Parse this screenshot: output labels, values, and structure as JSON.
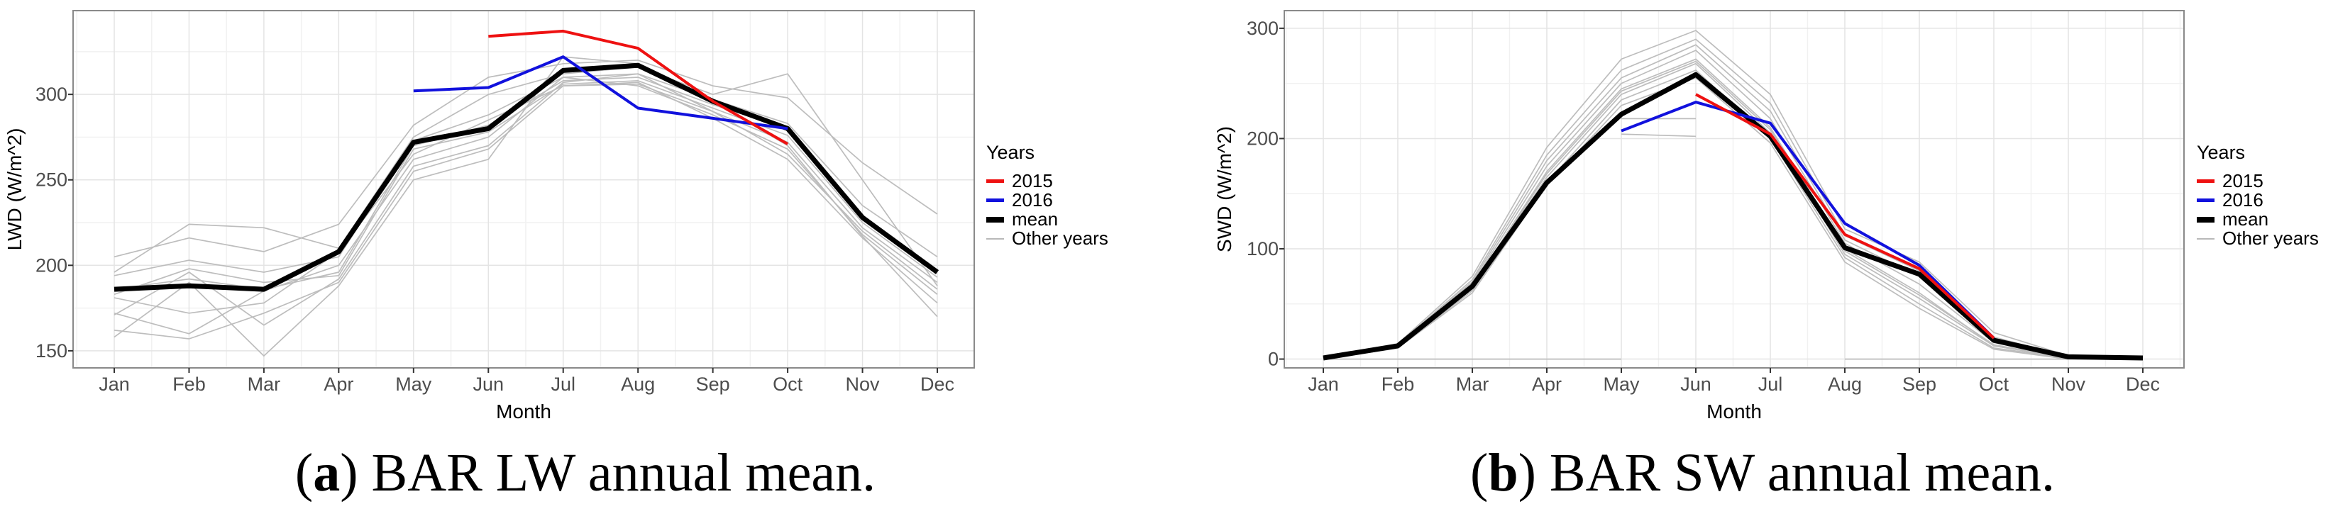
{
  "legend": {
    "title": "Years",
    "items": [
      {
        "label": "2015",
        "color": "#ee1111",
        "thickness": 5
      },
      {
        "label": "2016",
        "color": "#1111dd",
        "thickness": 5
      },
      {
        "label": "mean",
        "color": "#000000",
        "thickness": 8
      },
      {
        "label": "Other years",
        "color": "#b9b9b9",
        "thickness": 2
      }
    ]
  },
  "captions": [
    {
      "paren_open": "(",
      "marker": "a",
      "paren_close": ")",
      "text": "BAR LW annual mean."
    },
    {
      "paren_open": "(",
      "marker": "b",
      "paren_close": ")",
      "text": "BAR SW annual mean."
    }
  ],
  "colors": {
    "grid_major": "#e4e4e4",
    "grid_minor": "#f1f1f1",
    "panel_border": "#8a8a8a",
    "tick": "#333333",
    "tick_label": "#4d4d4d",
    "axis_title": "#000000"
  },
  "chart_data": [
    {
      "type": "line",
      "panel": "a",
      "title": "",
      "xlabel": "Month",
      "ylabel": "LWD (W/m^2)",
      "categories": [
        "Jan",
        "Feb",
        "Mar",
        "Apr",
        "May",
        "Jun",
        "Jul",
        "Aug",
        "Sep",
        "Oct",
        "Nov",
        "Dec"
      ],
      "yticks": [
        150,
        200,
        250,
        300
      ],
      "y_minor": [
        175,
        225,
        275,
        325
      ],
      "ylim": [
        140,
        349
      ],
      "grid": true,
      "legend_position": "right",
      "series": [
        {
          "name": "2015",
          "color": "#ee1111",
          "width": 4,
          "values": [
            null,
            null,
            null,
            null,
            null,
            334,
            337,
            327,
            296,
            271,
            null,
            null
          ]
        },
        {
          "name": "2016",
          "color": "#1111dd",
          "width": 4,
          "values": [
            null,
            null,
            null,
            null,
            302,
            304,
            322,
            292,
            286,
            280,
            null,
            null
          ]
        },
        {
          "name": "mean",
          "color": "#000000",
          "width": 7,
          "values": [
            186,
            188,
            186,
            208,
            272,
            280,
            314,
            317,
            296,
            280,
            228,
            196
          ]
        }
      ],
      "other_years": {
        "name": "Other years",
        "color": "#bdbdbd",
        "width": 1.7,
        "values_list": [
          [
            205,
            216,
            208,
            224,
            282,
            310,
            318,
            320,
            305,
            298,
            260,
            230
          ],
          [
            196,
            224,
            222,
            210,
            275,
            300,
            312,
            316,
            300,
            312,
            250,
            188
          ],
          [
            194,
            203,
            196,
            205,
            273,
            288,
            310,
            312,
            297,
            283,
            235,
            205
          ],
          [
            186,
            192,
            186,
            196,
            270,
            282,
            308,
            310,
            294,
            280,
            228,
            197
          ],
          [
            183,
            198,
            190,
            194,
            268,
            278,
            306,
            308,
            292,
            276,
            225,
            193
          ],
          [
            181,
            172,
            178,
            208,
            265,
            285,
            305,
            306,
            290,
            272,
            222,
            190
          ],
          [
            172,
            160,
            185,
            200,
            262,
            275,
            310,
            305,
            288,
            268,
            218,
            183
          ],
          [
            171,
            196,
            165,
            192,
            258,
            270,
            307,
            312,
            290,
            265,
            220,
            186
          ],
          [
            162,
            157,
            172,
            190,
            255,
            268,
            305,
            307,
            286,
            262,
            216,
            178
          ],
          [
            158,
            190,
            147,
            188,
            250,
            262,
            322,
            318,
            296,
            270,
            217,
            170
          ]
        ]
      }
    },
    {
      "type": "line",
      "panel": "b",
      "title": "",
      "xlabel": "Month",
      "ylabel": "SWD (W/m^2)",
      "categories": [
        "Jan",
        "Feb",
        "Mar",
        "Apr",
        "May",
        "Jun",
        "Jul",
        "Aug",
        "Sep",
        "Oct",
        "Nov",
        "Dec"
      ],
      "yticks": [
        0,
        100,
        200,
        300
      ],
      "y_minor": [
        50,
        150,
        250
      ],
      "ylim": [
        -8,
        316
      ],
      "grid": true,
      "legend_position": "right",
      "series": [
        {
          "name": "2015",
          "color": "#ee1111",
          "width": 4,
          "values": [
            null,
            null,
            null,
            null,
            null,
            240,
            204,
            113,
            82,
            19,
            null,
            null
          ]
        },
        {
          "name": "2016",
          "color": "#1111dd",
          "width": 4,
          "values": [
            null,
            null,
            null,
            null,
            207,
            233,
            214,
            123,
            85,
            19,
            null,
            null
          ]
        },
        {
          "name": "mean",
          "color": "#000000",
          "width": 7,
          "values": [
            1,
            12,
            66,
            160,
            222,
            258,
            202,
            101,
            77,
            17,
            2,
            1
          ]
        }
      ],
      "other_years": {
        "name": "Other years",
        "color": "#bdbdbd",
        "width": 1.7,
        "values_list": [
          [
            2,
            14,
            75,
            192,
            272,
            298,
            240,
            118,
            88,
            24,
            3,
            2
          ],
          [
            1,
            13,
            72,
            185,
            262,
            290,
            232,
            112,
            80,
            20,
            2,
            1
          ],
          [
            1,
            13,
            70,
            180,
            255,
            285,
            225,
            108,
            75,
            18,
            2,
            1
          ],
          [
            1,
            12,
            68,
            175,
            250,
            280,
            218,
            105,
            68,
            15,
            1,
            1
          ],
          [
            1,
            12,
            66,
            170,
            245,
            272,
            210,
            100,
            60,
            12,
            1,
            0
          ],
          [
            1,
            11,
            64,
            165,
            240,
            268,
            205,
            95,
            55,
            12,
            1,
            0
          ],
          [
            0,
            10,
            62,
            160,
            235,
            262,
            200,
            92,
            50,
            10,
            1,
            0
          ],
          [
            0,
            10,
            60,
            158,
            230,
            255,
            196,
            88,
            46,
            9,
            0,
            0
          ],
          [
            1,
            12,
            65,
            168,
            243,
            270,
            208,
            98,
            58,
            13,
            1,
            0
          ],
          [
            null,
            null,
            null,
            null,
            218,
            218,
            null,
            null,
            null,
            null,
            null,
            null
          ],
          [
            null,
            null,
            null,
            null,
            204,
            202,
            null,
            null,
            null,
            null,
            null,
            null
          ],
          [
            0,
            0,
            0,
            0,
            0,
            null,
            null,
            0,
            0,
            0,
            0,
            0
          ]
        ]
      }
    }
  ]
}
